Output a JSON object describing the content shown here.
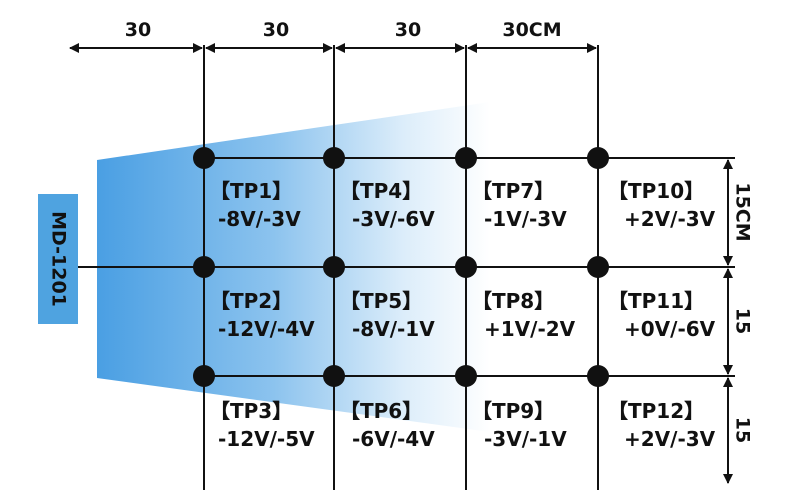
{
  "device": {
    "label": "MD-1201"
  },
  "dimensions": {
    "horizontal": [
      "30",
      "30",
      "30",
      "30CM"
    ],
    "vertical": [
      "15CM",
      "15",
      "15"
    ]
  },
  "test_points": [
    {
      "name": "【TP1】",
      "value": "-8V/-3V"
    },
    {
      "name": "【TP2】",
      "value": "-12V/-4V"
    },
    {
      "name": "【TP3】",
      "value": "-12V/-5V"
    },
    {
      "name": "【TP4】",
      "value": "-3V/-6V"
    },
    {
      "name": "【TP5】",
      "value": "-8V/-1V"
    },
    {
      "name": "【TP6】",
      "value": "-6V/-4V"
    },
    {
      "name": "【TP7】",
      "value": "-1V/-3V"
    },
    {
      "name": "【TP8】",
      "value": "+1V/-2V"
    },
    {
      "name": "【TP9】",
      "value": "-3V/-1V"
    },
    {
      "name": "【TP10】",
      "value": "+2V/-3V"
    },
    {
      "name": "【TP11】",
      "value": "+0V/-6V"
    },
    {
      "name": "【TP12】",
      "value": "+2V/-3V"
    }
  ],
  "colors": {
    "device_box": "#4fa3e0",
    "beam_start": "#4a9fe3",
    "beam_end": "#ffffff",
    "line": "#111111",
    "node": "#111111"
  }
}
